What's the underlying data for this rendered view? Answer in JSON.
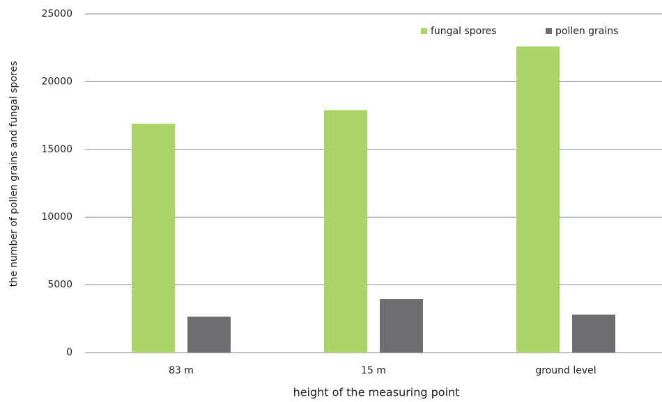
{
  "chart_data": {
    "type": "bar",
    "xlabel": "height of the measuring point",
    "ylabel": "the number of pollen grains and fungal spores",
    "categories": [
      "83 m",
      "15 m",
      "ground level"
    ],
    "series": [
      {
        "name": "fungal spores",
        "color": "#a9d466",
        "values": [
          16900,
          17900,
          22600
        ]
      },
      {
        "name": "pollen grains",
        "color": "#6d6e71",
        "values": [
          2650,
          3950,
          2800
        ]
      }
    ],
    "ylim": [
      0,
      25000
    ],
    "yticks": [
      0,
      5000,
      10000,
      15000,
      20000,
      25000
    ],
    "grid": true,
    "legend": "top-right"
  }
}
